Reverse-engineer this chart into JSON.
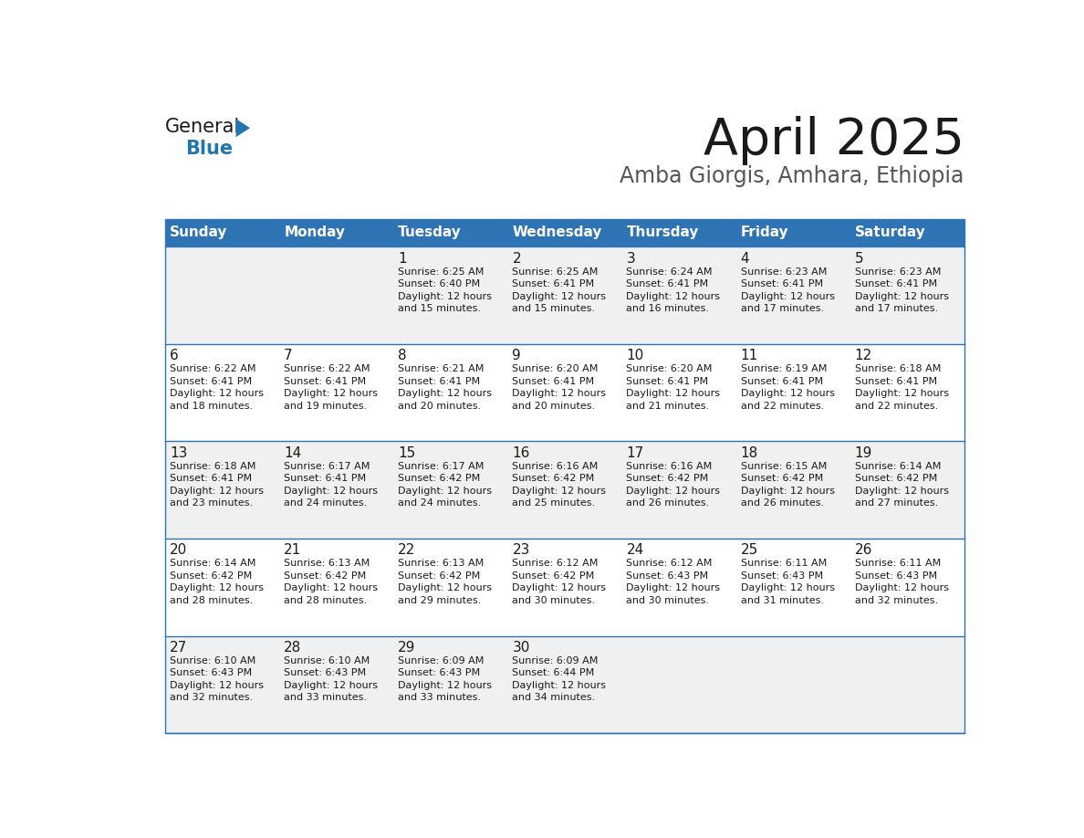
{
  "title": "April 2025",
  "subtitle": "Amba Giorgis, Amhara, Ethiopia",
  "header_bg": "#2E74B5",
  "header_text": "#FFFFFF",
  "row_bg_even": "#F0F0F0",
  "row_bg_odd": "#FFFFFF",
  "border_color": "#2E74B5",
  "day_headers": [
    "Sunday",
    "Monday",
    "Tuesday",
    "Wednesday",
    "Thursday",
    "Friday",
    "Saturday"
  ],
  "calendar": [
    [
      {
        "day": "",
        "sunrise": "",
        "sunset": "",
        "daylight": ""
      },
      {
        "day": "",
        "sunrise": "",
        "sunset": "",
        "daylight": ""
      },
      {
        "day": "1",
        "sunrise": "6:25 AM",
        "sunset": "6:40 PM",
        "daylight": "12 hours and 15 minutes."
      },
      {
        "day": "2",
        "sunrise": "6:25 AM",
        "sunset": "6:41 PM",
        "daylight": "12 hours and 15 minutes."
      },
      {
        "day": "3",
        "sunrise": "6:24 AM",
        "sunset": "6:41 PM",
        "daylight": "12 hours and 16 minutes."
      },
      {
        "day": "4",
        "sunrise": "6:23 AM",
        "sunset": "6:41 PM",
        "daylight": "12 hours and 17 minutes."
      },
      {
        "day": "5",
        "sunrise": "6:23 AM",
        "sunset": "6:41 PM",
        "daylight": "12 hours and 17 minutes."
      }
    ],
    [
      {
        "day": "6",
        "sunrise": "6:22 AM",
        "sunset": "6:41 PM",
        "daylight": "12 hours and 18 minutes."
      },
      {
        "day": "7",
        "sunrise": "6:22 AM",
        "sunset": "6:41 PM",
        "daylight": "12 hours and 19 minutes."
      },
      {
        "day": "8",
        "sunrise": "6:21 AM",
        "sunset": "6:41 PM",
        "daylight": "12 hours and 20 minutes."
      },
      {
        "day": "9",
        "sunrise": "6:20 AM",
        "sunset": "6:41 PM",
        "daylight": "12 hours and 20 minutes."
      },
      {
        "day": "10",
        "sunrise": "6:20 AM",
        "sunset": "6:41 PM",
        "daylight": "12 hours and 21 minutes."
      },
      {
        "day": "11",
        "sunrise": "6:19 AM",
        "sunset": "6:41 PM",
        "daylight": "12 hours and 22 minutes."
      },
      {
        "day": "12",
        "sunrise": "6:18 AM",
        "sunset": "6:41 PM",
        "daylight": "12 hours and 22 minutes."
      }
    ],
    [
      {
        "day": "13",
        "sunrise": "6:18 AM",
        "sunset": "6:41 PM",
        "daylight": "12 hours and 23 minutes."
      },
      {
        "day": "14",
        "sunrise": "6:17 AM",
        "sunset": "6:41 PM",
        "daylight": "12 hours and 24 minutes."
      },
      {
        "day": "15",
        "sunrise": "6:17 AM",
        "sunset": "6:42 PM",
        "daylight": "12 hours and 24 minutes."
      },
      {
        "day": "16",
        "sunrise": "6:16 AM",
        "sunset": "6:42 PM",
        "daylight": "12 hours and 25 minutes."
      },
      {
        "day": "17",
        "sunrise": "6:16 AM",
        "sunset": "6:42 PM",
        "daylight": "12 hours and 26 minutes."
      },
      {
        "day": "18",
        "sunrise": "6:15 AM",
        "sunset": "6:42 PM",
        "daylight": "12 hours and 26 minutes."
      },
      {
        "day": "19",
        "sunrise": "6:14 AM",
        "sunset": "6:42 PM",
        "daylight": "12 hours and 27 minutes."
      }
    ],
    [
      {
        "day": "20",
        "sunrise": "6:14 AM",
        "sunset": "6:42 PM",
        "daylight": "12 hours and 28 minutes."
      },
      {
        "day": "21",
        "sunrise": "6:13 AM",
        "sunset": "6:42 PM",
        "daylight": "12 hours and 28 minutes."
      },
      {
        "day": "22",
        "sunrise": "6:13 AM",
        "sunset": "6:42 PM",
        "daylight": "12 hours and 29 minutes."
      },
      {
        "day": "23",
        "sunrise": "6:12 AM",
        "sunset": "6:42 PM",
        "daylight": "12 hours and 30 minutes."
      },
      {
        "day": "24",
        "sunrise": "6:12 AM",
        "sunset": "6:43 PM",
        "daylight": "12 hours and 30 minutes."
      },
      {
        "day": "25",
        "sunrise": "6:11 AM",
        "sunset": "6:43 PM",
        "daylight": "12 hours and 31 minutes."
      },
      {
        "day": "26",
        "sunrise": "6:11 AM",
        "sunset": "6:43 PM",
        "daylight": "12 hours and 32 minutes."
      }
    ],
    [
      {
        "day": "27",
        "sunrise": "6:10 AM",
        "sunset": "6:43 PM",
        "daylight": "12 hours and 32 minutes."
      },
      {
        "day": "28",
        "sunrise": "6:10 AM",
        "sunset": "6:43 PM",
        "daylight": "12 hours and 33 minutes."
      },
      {
        "day": "29",
        "sunrise": "6:09 AM",
        "sunset": "6:43 PM",
        "daylight": "12 hours and 33 minutes."
      },
      {
        "day": "30",
        "sunrise": "6:09 AM",
        "sunset": "6:44 PM",
        "daylight": "12 hours and 34 minutes."
      },
      {
        "day": "",
        "sunrise": "",
        "sunset": "",
        "daylight": ""
      },
      {
        "day": "",
        "sunrise": "",
        "sunset": "",
        "daylight": ""
      },
      {
        "day": "",
        "sunrise": "",
        "sunset": "",
        "daylight": ""
      }
    ]
  ],
  "logo_color_general": "#1a1a1a",
  "logo_color_blue": "#2176AE",
  "title_color": "#1a1a1a",
  "subtitle_color": "#555555",
  "title_fontsize": 40,
  "subtitle_fontsize": 17,
  "header_fontsize": 11,
  "day_num_fontsize": 11,
  "cell_text_fontsize": 8
}
